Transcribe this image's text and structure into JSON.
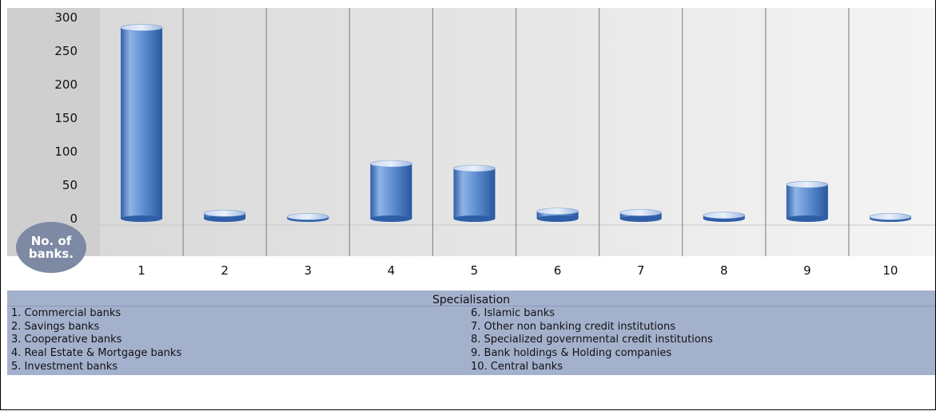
{
  "chart_data": {
    "type": "bar",
    "title": "",
    "xlabel": "Specialisation",
    "ylabel": "No. of banks.",
    "categories": [
      "1",
      "2",
      "3",
      "4",
      "5",
      "6",
      "7",
      "8",
      "9",
      "10"
    ],
    "values": [
      285,
      8,
      3,
      82,
      75,
      11,
      9,
      5,
      51,
      3
    ],
    "yticks": [
      0,
      50,
      100,
      150,
      200,
      250,
      300
    ],
    "ylim": [
      0,
      300
    ],
    "grid": false,
    "legend": [
      "1. Commercial banks",
      "2. Savings banks",
      "3. Cooperative banks",
      "4. Real Estate & Mortgage banks",
      "5. Investment banks",
      "6. Islamic banks",
      "7. Other non banking credit institutions",
      "8. Specialized governmental credit institutions",
      "9. Bank holdings & Holding companies",
      "10. Central banks"
    ],
    "legend_placement": "bottom"
  },
  "colors": {
    "bar": "#4a7cc2",
    "plot_background": "#e0e0e0",
    "axis_band": "#cfcfcf",
    "legend_panel": "#a4b1cd",
    "badge": "#7e8aa3"
  }
}
